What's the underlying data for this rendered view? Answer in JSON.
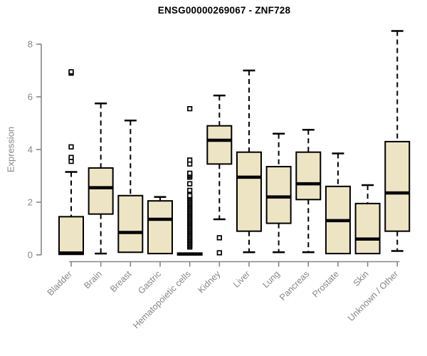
{
  "chart_data": {
    "type": "boxplot",
    "title": "ENSG00000269067 - ZNF728",
    "xlabel": "",
    "ylabel": "Expression",
    "ylim": [
      0,
      8
    ],
    "yticks": [
      "0",
      "2",
      "4",
      "6",
      "8"
    ],
    "grid": false,
    "legend": "none",
    "colors": {
      "box_fill": "#EDE4C4",
      "box_stroke": "#000000",
      "median": "#000000",
      "whisker": "#000000",
      "axis": "#868686",
      "tick_label": "#868686",
      "title": "#000000",
      "background": "#ffffff"
    },
    "categories": [
      "Bladder",
      "Brain",
      "Breast",
      "Gastric",
      "Hematopoietic cells",
      "Kidney",
      "Liver",
      "Lung",
      "Pancreas",
      "Prostate",
      "Skin",
      "Unknown / Other"
    ],
    "boxes": [
      {
        "category": "Bladder",
        "q1": 0.02,
        "median": 0.07,
        "q3": 1.45,
        "whisker_low": null,
        "whisker_high": 3.15,
        "outliers": [
          3.55,
          3.7,
          4.1,
          6.9,
          6.95
        ]
      },
      {
        "category": "Brain",
        "q1": 1.55,
        "median": 2.55,
        "q3": 3.3,
        "whisker_low": 0.05,
        "whisker_high": 5.75,
        "outliers": []
      },
      {
        "category": "Breast",
        "q1": 0.1,
        "median": 0.85,
        "q3": 2.25,
        "whisker_low": null,
        "whisker_high": 5.1,
        "outliers": []
      },
      {
        "category": "Gastric",
        "q1": 0.05,
        "median": 1.35,
        "q3": 2.05,
        "whisker_low": null,
        "whisker_high": 2.2,
        "outliers": []
      },
      {
        "category": "Hematopoietic cells",
        "q1": 0.0,
        "median": 0.03,
        "q3": 0.07,
        "whisker_low": null,
        "whisker_high": null,
        "outliers": [
          0.3,
          0.35,
          0.4,
          0.45,
          0.5,
          0.55,
          0.6,
          0.65,
          0.7,
          0.75,
          0.8,
          0.85,
          0.9,
          0.95,
          1.0,
          1.05,
          1.1,
          1.15,
          1.2,
          1.25,
          1.3,
          1.35,
          1.4,
          1.45,
          1.5,
          1.55,
          1.6,
          1.65,
          1.7,
          1.75,
          1.8,
          1.85,
          1.9,
          1.95,
          2.0,
          2.05,
          2.1,
          2.15,
          2.2,
          2.25,
          2.45,
          2.7,
          2.95,
          3.0,
          3.05,
          3.1,
          3.45,
          3.6,
          5.55
        ]
      },
      {
        "category": "Kidney",
        "q1": 3.45,
        "median": 4.35,
        "q3": 4.9,
        "whisker_low": 1.35,
        "whisker_high": 6.05,
        "outliers": [
          0.65,
          0.08
        ]
      },
      {
        "category": "Liver",
        "q1": 0.9,
        "median": 2.95,
        "q3": 3.9,
        "whisker_low": 0.1,
        "whisker_high": 7.0,
        "outliers": []
      },
      {
        "category": "Lung",
        "q1": 1.2,
        "median": 2.2,
        "q3": 3.35,
        "whisker_low": 0.1,
        "whisker_high": 4.6,
        "outliers": []
      },
      {
        "category": "Pancreas",
        "q1": 2.1,
        "median": 2.7,
        "q3": 3.9,
        "whisker_low": 0.1,
        "whisker_high": 4.75,
        "outliers": []
      },
      {
        "category": "Prostate",
        "q1": 0.05,
        "median": 1.3,
        "q3": 2.6,
        "whisker_low": null,
        "whisker_high": 3.85,
        "outliers": []
      },
      {
        "category": "Skin",
        "q1": 0.05,
        "median": 0.6,
        "q3": 1.95,
        "whisker_low": null,
        "whisker_high": 2.65,
        "outliers": []
      },
      {
        "category": "Unknown / Other",
        "q1": 0.9,
        "median": 2.35,
        "q3": 4.3,
        "whisker_low": 0.15,
        "whisker_high": 8.5,
        "outliers": []
      }
    ]
  }
}
